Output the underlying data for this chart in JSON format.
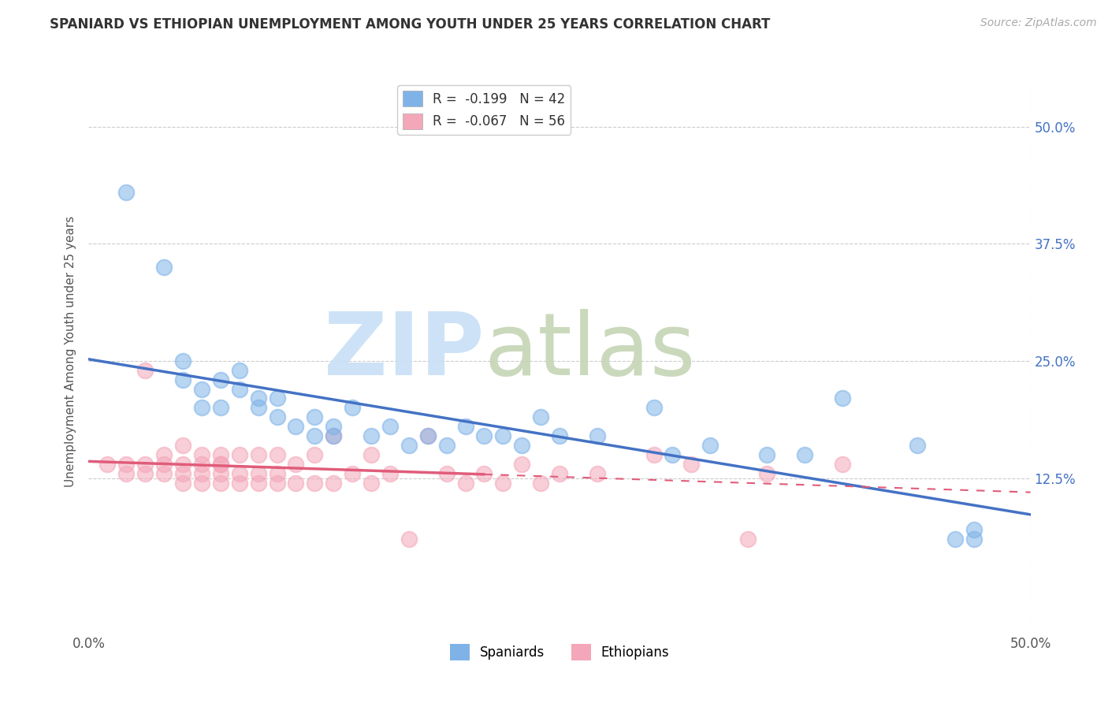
{
  "title": "SPANIARD VS ETHIOPIAN UNEMPLOYMENT AMONG YOUTH UNDER 25 YEARS CORRELATION CHART",
  "source": "Source: ZipAtlas.com",
  "ylabel": "Unemployment Among Youth under 25 years",
  "xlim": [
    0.0,
    0.5
  ],
  "ylim": [
    -0.04,
    0.56
  ],
  "xticks": [
    0.0,
    0.125,
    0.25,
    0.375,
    0.5
  ],
  "xticklabels": [
    "0.0%",
    "",
    "",
    "",
    "50.0%"
  ],
  "yticks": [
    0.125,
    0.25,
    0.375,
    0.5
  ],
  "yticklabels": [
    "12.5%",
    "25.0%",
    "37.5%",
    "50.0%"
  ],
  "grid_color": "#cccccc",
  "background_color": "#ffffff",
  "spaniards_color": "#7fb3e8",
  "ethiopians_color": "#f4a7b9",
  "spaniards_line_color": "#4472c4",
  "ethiopians_line_color": "#e05c7a",
  "legend_r_spaniards": "R =  -0.199",
  "legend_n_spaniards": "N = 42",
  "legend_r_ethiopians": "R =  -0.067",
  "legend_n_ethiopians": "N = 56",
  "spaniards_x": [
    0.02,
    0.04,
    0.05,
    0.05,
    0.06,
    0.06,
    0.07,
    0.07,
    0.08,
    0.08,
    0.09,
    0.09,
    0.1,
    0.1,
    0.11,
    0.12,
    0.12,
    0.13,
    0.13,
    0.14,
    0.15,
    0.16,
    0.17,
    0.18,
    0.19,
    0.2,
    0.21,
    0.22,
    0.23,
    0.24,
    0.25,
    0.27,
    0.3,
    0.31,
    0.33,
    0.36,
    0.38,
    0.4,
    0.44,
    0.46,
    0.47,
    0.47
  ],
  "spaniards_y": [
    0.43,
    0.35,
    0.25,
    0.23,
    0.2,
    0.22,
    0.2,
    0.23,
    0.22,
    0.24,
    0.21,
    0.2,
    0.19,
    0.21,
    0.18,
    0.17,
    0.19,
    0.18,
    0.17,
    0.2,
    0.17,
    0.18,
    0.16,
    0.17,
    0.16,
    0.18,
    0.17,
    0.17,
    0.16,
    0.19,
    0.17,
    0.17,
    0.2,
    0.15,
    0.16,
    0.15,
    0.15,
    0.21,
    0.16,
    0.06,
    0.06,
    0.07
  ],
  "ethiopians_x": [
    0.01,
    0.02,
    0.02,
    0.03,
    0.03,
    0.03,
    0.04,
    0.04,
    0.04,
    0.05,
    0.05,
    0.05,
    0.05,
    0.06,
    0.06,
    0.06,
    0.06,
    0.07,
    0.07,
    0.07,
    0.07,
    0.07,
    0.08,
    0.08,
    0.08,
    0.09,
    0.09,
    0.09,
    0.1,
    0.1,
    0.1,
    0.11,
    0.11,
    0.12,
    0.12,
    0.13,
    0.13,
    0.14,
    0.15,
    0.15,
    0.16,
    0.17,
    0.18,
    0.19,
    0.2,
    0.21,
    0.22,
    0.23,
    0.24,
    0.25,
    0.27,
    0.3,
    0.32,
    0.35,
    0.36,
    0.4
  ],
  "ethiopians_y": [
    0.14,
    0.13,
    0.14,
    0.13,
    0.14,
    0.24,
    0.13,
    0.14,
    0.15,
    0.12,
    0.13,
    0.14,
    0.16,
    0.12,
    0.13,
    0.14,
    0.15,
    0.12,
    0.13,
    0.14,
    0.14,
    0.15,
    0.12,
    0.13,
    0.15,
    0.12,
    0.13,
    0.15,
    0.12,
    0.13,
    0.15,
    0.12,
    0.14,
    0.12,
    0.15,
    0.12,
    0.17,
    0.13,
    0.12,
    0.15,
    0.13,
    0.06,
    0.17,
    0.13,
    0.12,
    0.13,
    0.12,
    0.14,
    0.12,
    0.13,
    0.13,
    0.15,
    0.14,
    0.06,
    0.13,
    0.14
  ],
  "ethiopians_solid_xlim": [
    0.0,
    0.21
  ],
  "ethiopians_dashed_xlim": [
    0.21,
    0.5
  ]
}
